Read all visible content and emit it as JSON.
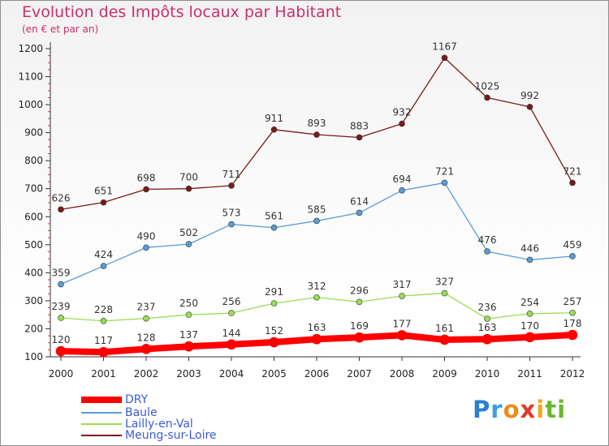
{
  "title": "Evolution des Impôts locaux par Habitant",
  "subtitle": "(en € et par an)",
  "logo": {
    "text": "Proxiti",
    "letters": [
      "P",
      "r",
      "o",
      "x",
      "i",
      "t",
      "i"
    ],
    "colors": [
      "#2a7fd0",
      "#3aa0e0",
      "#f08a1c",
      "#e23a2a",
      "#f2a81c",
      "#6ab82d",
      "#6ab82d"
    ]
  },
  "chart_data": {
    "type": "line",
    "title": "Evolution des Impôts locaux par Habitant",
    "subtitle": "(en € et par an)",
    "xlabel": "",
    "ylabel": "",
    "categories": [
      "2000",
      "2001",
      "2002",
      "2003",
      "2004",
      "2005",
      "2006",
      "2007",
      "2008",
      "2009",
      "2010",
      "2011",
      "2012"
    ],
    "yticks": [
      "100",
      "200",
      "300",
      "400",
      "500",
      "600",
      "700",
      "800",
      "900",
      "1000",
      "1100",
      "1200"
    ],
    "ylim": [
      100,
      1200
    ],
    "grid": false,
    "legend_position": "bottom-left",
    "series": [
      {
        "name": "DRY",
        "color": "#ff0000",
        "values": [
          120,
          117,
          128,
          137,
          144,
          152,
          163,
          169,
          177,
          161,
          163,
          170,
          178
        ]
      },
      {
        "name": "Baule",
        "color": "#5a9cd4",
        "values": [
          359,
          424,
          490,
          502,
          573,
          561,
          585,
          614,
          694,
          721,
          476,
          446,
          459
        ]
      },
      {
        "name": "Lailly-en-Val",
        "color": "#99dd55",
        "values": [
          239,
          228,
          237,
          250,
          256,
          291,
          312,
          296,
          317,
          327,
          236,
          254,
          257
        ]
      },
      {
        "name": "Meung-sur-Loire",
        "color": "#7a1a1a",
        "values": [
          626,
          651,
          698,
          700,
          711,
          911,
          893,
          883,
          932,
          1167,
          1025,
          992,
          721
        ]
      }
    ]
  }
}
